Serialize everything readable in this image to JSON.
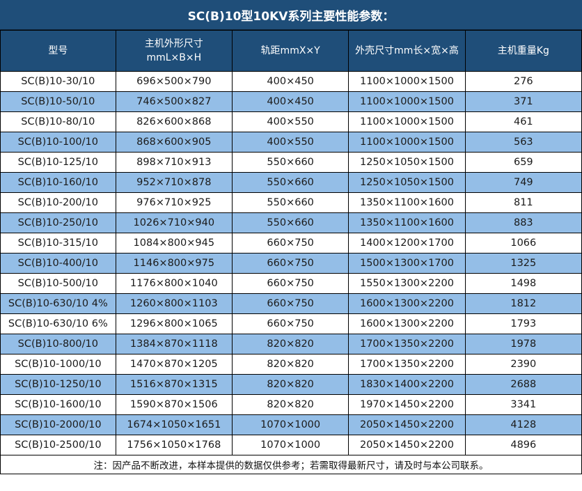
{
  "colors": {
    "header_bg": "#1F4E79",
    "row_alt_bg": "#94BEE7",
    "row_bg": "#FFFFFF",
    "border": "#000000",
    "header_text": "#FFFFFF",
    "body_text": "#1A1A1A"
  },
  "chart_data": {
    "type": "table",
    "title": "SC(B)10型10KV系列主要性能参数：",
    "columns": [
      "型号",
      "主机外形尺寸",
      "轨距mmX×Y",
      "外壳尺寸mm长×宽×高",
      "主机重量Kg"
    ],
    "columns_sub": [
      "",
      "mmL×B×H",
      "",
      "",
      ""
    ],
    "rows": [
      [
        "SC(B)10-30/10",
        "696×500×790",
        "400×450",
        "1100×1000×1500",
        "276"
      ],
      [
        "SC(B)10-50/10",
        "746×500×827",
        "400×450",
        "1100×1000×1500",
        "371"
      ],
      [
        "SC(B)10-80/10",
        "826×600×868",
        "400×550",
        "1100×1000×1500",
        "461"
      ],
      [
        "SC(B)10-100/10",
        "868×600×905",
        "400×550",
        "1100×1000×1500",
        "563"
      ],
      [
        "SC(B)10-125/10",
        "898×710×913",
        "550×660",
        "1250×1050×1500",
        "659"
      ],
      [
        "SC(B)10-160/10",
        "952×710×878",
        "550×660",
        "1250×1050×1500",
        "749"
      ],
      [
        "SC(B)10-200/10",
        "976×710×925",
        "550×660",
        "1350×1100×1600",
        "811"
      ],
      [
        "SC(B)10-250/10",
        "1026×710×940",
        "550×660",
        "1350×1100×1600",
        "883"
      ],
      [
        "SC(B)10-315/10",
        "1084×800×945",
        "660×750",
        "1400×1200×1700",
        "1066"
      ],
      [
        "SC(B)10-400/10",
        "1146×800×975",
        "660×750",
        "1500×1300×1700",
        "1325"
      ],
      [
        "SC(B)10-500/10",
        "1176×800×1040",
        "660×750",
        "1550×1300×2200",
        "1498"
      ],
      [
        "SC(B)10-630/10 4%",
        "1260×800×1103",
        "660×750",
        "1600×1300×2200",
        "1812"
      ],
      [
        "SC(B)10-630/10 6%",
        "1296×800×1065",
        "660×750",
        "1600×1300×2200",
        "1793"
      ],
      [
        "SC(B)10-800/10",
        "1384×870×1118",
        "820×820",
        "1700×1350×2200",
        "1978"
      ],
      [
        "SC(B)10-1000/10",
        "1470×870×1205",
        "820×820",
        "1700×1350×2200",
        "2390"
      ],
      [
        "SC(B)10-1250/10",
        "1516×870×1315",
        "820×820",
        "1830×1400×2200",
        "2688"
      ],
      [
        "SC(B)10-1600/10",
        "1590×870×1506",
        "820×820",
        "1970×1450×2200",
        "3341"
      ],
      [
        "SC(B)10-2000/10",
        "1674×1050×1651",
        "1070×1000",
        "2050×1450×2200",
        "4128"
      ],
      [
        "SC(B)10-2500/10",
        "1756×1050×1768",
        "1070×1000",
        "2050×1450×2200",
        "4896"
      ]
    ],
    "note": "注：因产品不断改进，本样本提供的数据仅供参考；若需取得最新尺寸，请及时与本公司联系。",
    "layout": {
      "grid": true,
      "alternating_rows": true,
      "header_rows": 1,
      "data_rows": 19
    }
  }
}
